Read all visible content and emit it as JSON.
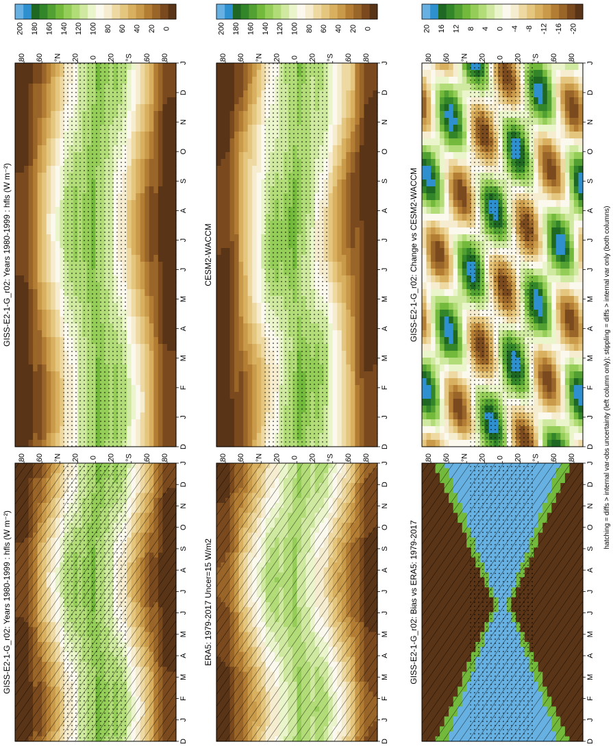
{
  "figure": {
    "footnote": "hatching = diffs > internal var-obs uncertainty (left column only); stippling = diffs > internal var only (both columns)",
    "month_ticks": [
      "D",
      "J",
      "F",
      "M",
      "A",
      "M",
      "J",
      "J",
      "A",
      "S",
      "O",
      "N",
      "D",
      "J"
    ],
    "lat_ticks": [
      "80",
      "60",
      "°N",
      "20",
      "0",
      "20",
      "°S",
      "60",
      "80"
    ]
  },
  "palettes": {
    "abs": [
      "#5a3416",
      "#7a4a1e",
      "#9a6528",
      "#b47d34",
      "#c99a4a",
      "#d9b060",
      "#e5c67f",
      "#eed9a2",
      "#f6ecd0",
      "#fbf8ee",
      "#ebf5cc",
      "#cfe9a0",
      "#b2dc78",
      "#94cd58",
      "#73ba3c",
      "#51a031",
      "#33852a",
      "#1e6824",
      "#2f90cf",
      "#66b1e2"
    ],
    "diff": [
      "#5a3416",
      "#7a4a1e",
      "#9a6528",
      "#b47d34",
      "#c99a4a",
      "#d9b060",
      "#e5c67f",
      "#eed9a2",
      "#f6ecd0",
      "#fbf8ee",
      "#ebf5cc",
      "#cfe9a0",
      "#b2dc78",
      "#94cd58",
      "#73ba3c",
      "#51a031",
      "#33852a",
      "#1e6824",
      "#2f90cf",
      "#66b1e2"
    ]
  },
  "colorbars": {
    "abs_labels": [
      "200",
      "180",
      "160",
      "140",
      "120",
      "100",
      "80",
      "60",
      "40",
      "20",
      "0"
    ],
    "diff_labels": [
      "20",
      "16",
      "12",
      "8",
      "4",
      "0",
      "-4",
      "-8",
      "-12",
      "-16",
      "-20"
    ]
  },
  "chart_data": [
    {
      "type": "heatmap",
      "title": "GISS-E2-1-G_r02: Years 1980-1999 : hfls (W m⁻²)",
      "xlabel": "",
      "ylabel": "",
      "xlim": [
        0,
        13
      ],
      "ylim": [
        -90,
        90
      ],
      "clim": [
        0,
        200
      ],
      "units": "W m-2",
      "field": "model",
      "hatching": true,
      "stippling": true
    },
    {
      "type": "heatmap",
      "title": "GISS-E2-1-G_r02: Years 1980-1999 : hfls (W m⁻²)",
      "xlabel": "",
      "ylabel": "",
      "xlim": [
        0,
        13
      ],
      "ylim": [
        -90,
        90
      ],
      "clim": [
        0,
        200
      ],
      "units": "W m-2",
      "field": "model",
      "hatching": false,
      "stippling": true
    },
    {
      "type": "heatmap",
      "title": "ERA5: 1979-2017 Uncer=15 W/m2",
      "xlabel": "",
      "ylabel": "",
      "xlim": [
        0,
        13
      ],
      "ylim": [
        -90,
        90
      ],
      "clim": [
        0,
        200
      ],
      "units": "W m-2",
      "field": "obs",
      "hatching": true,
      "stippling": false
    },
    {
      "type": "heatmap",
      "title": "CESM2-WACCM",
      "xlabel": "",
      "ylabel": "",
      "xlim": [
        0,
        13
      ],
      "ylim": [
        -90,
        90
      ],
      "clim": [
        0,
        200
      ],
      "units": "W m-2",
      "field": "model2",
      "hatching": false,
      "stippling": true
    },
    {
      "type": "heatmap",
      "title": "GISS-E2-1-G_r02: Bias vs ERA5: 1979-2017",
      "xlabel": "",
      "ylabel": "",
      "xlim": [
        0,
        13
      ],
      "ylim": [
        -90,
        90
      ],
      "clim": [
        -20,
        20
      ],
      "units": "W m-2",
      "field": "bias",
      "hatching": true,
      "stippling": true
    },
    {
      "type": "heatmap",
      "title": "GISS-E2-1-G_r02: Change vs CESM2-WACCM",
      "xlabel": "",
      "ylabel": "",
      "xlim": [
        0,
        13
      ],
      "ylim": [
        -90,
        90
      ],
      "clim": [
        -20,
        20
      ],
      "units": "W m-2",
      "field": "change",
      "hatching": false,
      "stippling": true
    }
  ]
}
